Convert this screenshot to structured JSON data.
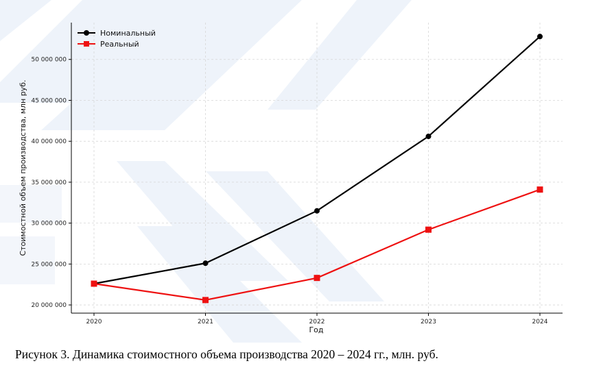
{
  "chart_data": {
    "type": "line",
    "x": [
      2020,
      2021,
      2022,
      2023,
      2024
    ],
    "xlabel": "Год",
    "ylabel": "Стоимостной объем производства, млн руб.",
    "ylim": [
      19000000,
      54500000
    ],
    "yticks": [
      20000000,
      25000000,
      30000000,
      35000000,
      40000000,
      45000000,
      50000000
    ],
    "ytick_labels": [
      "20 000 000",
      "25 000 000",
      "30 000 000",
      "35 000 000",
      "40 000 000",
      "45 000 000",
      "50 000 000"
    ],
    "xtick_labels": [
      "2020",
      "2021",
      "2022",
      "2023",
      "2024"
    ],
    "grid": true,
    "legend_position": "top-left",
    "series": [
      {
        "name": "Номинальный",
        "values": [
          22600000,
          25100000,
          31500000,
          40600000,
          52800000
        ],
        "color": "#000000",
        "marker": "circle"
      },
      {
        "name": "Реальный",
        "values": [
          22600000,
          20600000,
          23300000,
          29200000,
          34100000
        ],
        "color": "#ee1111",
        "marker": "square"
      }
    ]
  },
  "caption": "Рисунок 3. Динамика стоимостного объема производства 2020 – 2024 гг., млн. руб."
}
